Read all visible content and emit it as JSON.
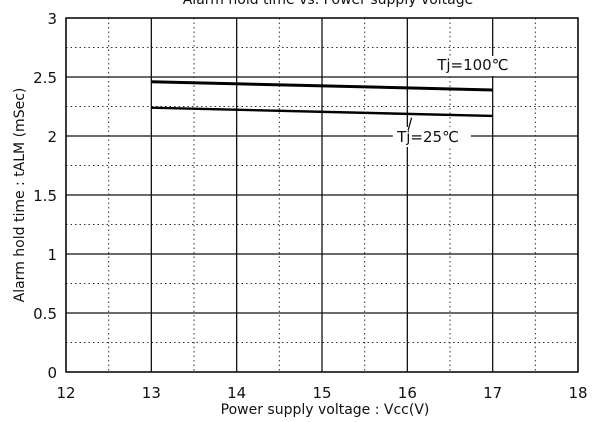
{
  "chart_data": {
    "type": "line",
    "title": "Alarm hold time vs. Power supply voltage",
    "xlabel": "Power supply voltage : Vcc(V)",
    "ylabel": "Alarm hold time : tALM (mSec)",
    "xlim": [
      12,
      18
    ],
    "ylim": [
      0,
      3
    ],
    "xticks": [
      12,
      13,
      14,
      15,
      16,
      17,
      18
    ],
    "yticks": [
      0,
      0.5,
      1,
      1.5,
      2,
      2.5,
      3
    ],
    "ytick_labels": [
      "0",
      "0.5",
      "1",
      "1.5",
      "2",
      "2.5",
      "3"
    ],
    "grid": {
      "major": true,
      "minor_dotted": true
    },
    "series": [
      {
        "name": "Tj=100℃",
        "x": [
          13,
          17
        ],
        "y": [
          2.46,
          2.39
        ]
      },
      {
        "name": "Tj=25℃",
        "x": [
          13,
          17
        ],
        "y": [
          2.24,
          2.17
        ]
      }
    ]
  }
}
